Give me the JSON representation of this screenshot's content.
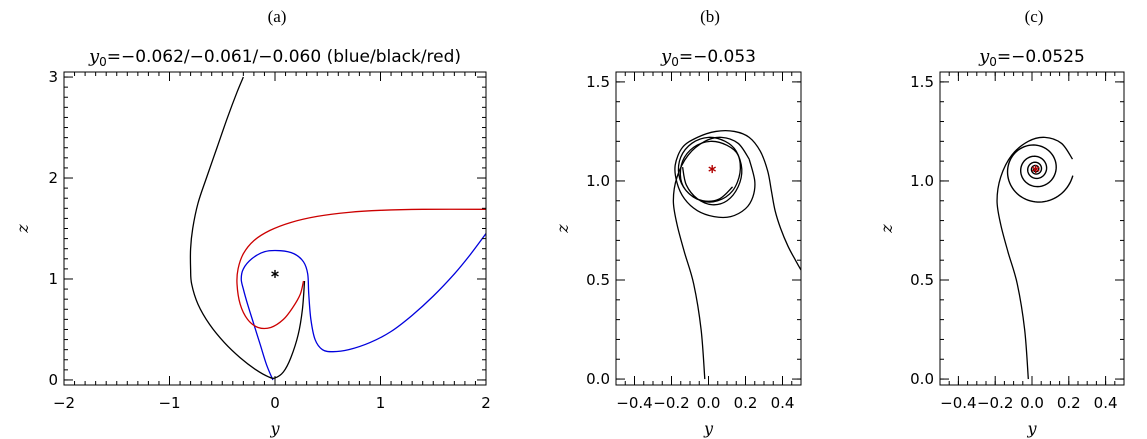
{
  "chart_data": [
    {
      "panel": "(a)",
      "type": "line",
      "title": {
        "symbol": "y",
        "subscript": "0",
        "text": "=−0.062/−0.061/−0.060 (blue/black/red)"
      },
      "xlabel": "y",
      "ylabel": "z",
      "xlim": [
        -2,
        2
      ],
      "ylim": [
        -0.05,
        3.05
      ],
      "xticks": [
        -2,
        -1,
        0,
        1,
        2
      ],
      "xtick_labels": [
        "−2",
        "−1",
        "0",
        "1",
        "2"
      ],
      "yticks": [
        0,
        1,
        2,
        3
      ],
      "ytick_labels": [
        "0",
        "1",
        "2",
        "3"
      ],
      "series": [
        {
          "color": "#0000dd",
          "points": [
            [
              -0.02,
              0.0
            ],
            [
              -0.08,
              0.15
            ],
            [
              -0.14,
              0.35
            ],
            [
              -0.2,
              0.55
            ],
            [
              -0.26,
              0.75
            ],
            [
              -0.3,
              0.9
            ],
            [
              -0.32,
              1.0
            ],
            [
              -0.3,
              1.1
            ],
            [
              -0.22,
              1.2
            ],
            [
              -0.1,
              1.27
            ],
            [
              0.05,
              1.28
            ],
            [
              0.18,
              1.25
            ],
            [
              0.27,
              1.17
            ],
            [
              0.31,
              1.05
            ],
            [
              0.32,
              0.85
            ],
            [
              0.34,
              0.6
            ],
            [
              0.38,
              0.4
            ],
            [
              0.45,
              0.3
            ],
            [
              0.55,
              0.28
            ],
            [
              0.7,
              0.3
            ],
            [
              0.9,
              0.37
            ],
            [
              1.1,
              0.48
            ],
            [
              1.3,
              0.64
            ],
            [
              1.5,
              0.83
            ],
            [
              1.7,
              1.05
            ],
            [
              1.85,
              1.24
            ],
            [
              2.0,
              1.45
            ]
          ]
        },
        {
          "color": "#000000",
          "points": [
            [
              0.28,
              0.98
            ],
            [
              0.26,
              0.7
            ],
            [
              0.22,
              0.45
            ],
            [
              0.15,
              0.22
            ],
            [
              0.08,
              0.08
            ],
            [
              0.0,
              0.02
            ],
            [
              -0.06,
              0.03
            ],
            [
              -0.18,
              0.1
            ],
            [
              -0.33,
              0.22
            ],
            [
              -0.48,
              0.37
            ],
            [
              -0.62,
              0.55
            ],
            [
              -0.73,
              0.75
            ],
            [
              -0.79,
              0.95
            ],
            [
              -0.8,
              1.1
            ],
            [
              -0.8,
              1.3
            ],
            [
              -0.78,
              1.5
            ],
            [
              -0.73,
              1.75
            ],
            [
              -0.65,
              2.0
            ],
            [
              -0.55,
              2.3
            ],
            [
              -0.45,
              2.6
            ],
            [
              -0.36,
              2.85
            ],
            [
              -0.3,
              3.0
            ]
          ]
        },
        {
          "color": "#cc0000",
          "points": [
            [
              0.27,
              0.98
            ],
            [
              0.24,
              0.85
            ],
            [
              0.17,
              0.72
            ],
            [
              0.08,
              0.6
            ],
            [
              -0.04,
              0.52
            ],
            [
              -0.16,
              0.52
            ],
            [
              -0.26,
              0.6
            ],
            [
              -0.33,
              0.75
            ],
            [
              -0.36,
              0.95
            ],
            [
              -0.35,
              1.1
            ],
            [
              -0.3,
              1.25
            ],
            [
              -0.2,
              1.38
            ],
            [
              -0.05,
              1.48
            ],
            [
              0.15,
              1.56
            ],
            [
              0.4,
              1.62
            ],
            [
              0.7,
              1.66
            ],
            [
              1.0,
              1.68
            ],
            [
              1.4,
              1.69
            ],
            [
              2.0,
              1.69
            ]
          ]
        }
      ],
      "markers": [
        {
          "x": 0.0,
          "y": 1.05,
          "color": "#000000",
          "symbol": "asterisk"
        }
      ]
    },
    {
      "panel": "(b)",
      "type": "line",
      "title": {
        "symbol": "y",
        "subscript": "0",
        "text": "=−0.053"
      },
      "xlabel": "y",
      "ylabel": "z",
      "xlim": [
        -0.5,
        0.5
      ],
      "ylim": [
        -0.03,
        1.55
      ],
      "xticks": [
        -0.4,
        -0.2,
        0.0,
        0.2,
        0.4
      ],
      "xtick_labels": [
        "−0.4",
        "−0.2",
        "0.0",
        "0.2",
        "0.4"
      ],
      "yticks": [
        0.0,
        0.5,
        1.0,
        1.5
      ],
      "ytick_labels": [
        "0.0",
        "0.5",
        "1.0",
        "1.5"
      ],
      "series": [
        {
          "color": "#000000",
          "points": [
            [
              -0.02,
              0.0
            ],
            [
              -0.04,
              0.25
            ],
            [
              -0.08,
              0.48
            ],
            [
              -0.13,
              0.64
            ],
            [
              -0.17,
              0.78
            ],
            [
              -0.19,
              0.9
            ],
            [
              -0.17,
              1.02
            ],
            [
              -0.11,
              1.13
            ],
            [
              -0.02,
              1.2
            ],
            [
              0.07,
              1.22
            ],
            [
              0.16,
              1.19
            ],
            [
              0.22,
              1.11
            ]
          ]
        },
        {
          "color": "#000000",
          "points": [
            [
              -0.14,
              1.07
            ],
            [
              -0.12,
              0.98
            ],
            [
              -0.06,
              0.91
            ],
            [
              0.02,
              0.88
            ],
            [
              0.1,
              0.9
            ],
            [
              0.16,
              0.97
            ],
            [
              0.18,
              1.06
            ],
            [
              0.15,
              1.15
            ],
            [
              0.09,
              1.2
            ],
            [
              0.0,
              1.22
            ],
            [
              -0.09,
              1.19
            ],
            [
              -0.15,
              1.12
            ],
            [
              -0.16,
              1.03
            ],
            [
              -0.12,
              0.95
            ],
            [
              -0.04,
              0.9
            ],
            [
              0.05,
              0.9
            ],
            [
              0.13,
              0.95
            ],
            [
              0.17,
              1.04
            ],
            [
              0.16,
              1.13
            ],
            [
              0.1,
              1.18
            ],
            [
              0.01,
              1.2
            ],
            [
              -0.08,
              1.17
            ],
            [
              -0.14,
              1.1
            ],
            [
              -0.15,
              1.01
            ],
            [
              -0.11,
              0.94
            ],
            [
              -0.03,
              0.9
            ],
            [
              0.06,
              0.91
            ],
            [
              0.13,
              0.97
            ]
          ]
        },
        {
          "color": "#000000",
          "points": [
            [
              0.22,
              1.11
            ],
            [
              0.25,
              1.0
            ],
            [
              0.24,
              0.92
            ],
            [
              0.2,
              0.86
            ],
            [
              0.12,
              0.82
            ],
            [
              0.03,
              0.82
            ],
            [
              -0.06,
              0.85
            ],
            [
              -0.13,
              0.91
            ],
            [
              -0.17,
              0.99
            ],
            [
              -0.18,
              1.08
            ],
            [
              -0.14,
              1.17
            ],
            [
              -0.06,
              1.22
            ],
            [
              0.04,
              1.25
            ],
            [
              0.14,
              1.25
            ],
            [
              0.22,
              1.22
            ],
            [
              0.28,
              1.15
            ],
            [
              0.32,
              1.05
            ],
            [
              0.34,
              0.95
            ],
            [
              0.36,
              0.85
            ],
            [
              0.39,
              0.76
            ],
            [
              0.43,
              0.67
            ],
            [
              0.47,
              0.6
            ],
            [
              0.5,
              0.55
            ]
          ]
        }
      ],
      "markers": [
        {
          "x": 0.02,
          "y": 1.06,
          "color": "#b00000",
          "symbol": "asterisk"
        }
      ]
    },
    {
      "panel": "(c)",
      "type": "line",
      "title": {
        "symbol": "y",
        "subscript": "0",
        "text": "=−0.0525"
      },
      "xlabel": "y",
      "ylabel": "z",
      "xlim": [
        -0.5,
        0.5
      ],
      "ylim": [
        -0.03,
        1.55
      ],
      "xticks": [
        -0.4,
        -0.2,
        0.0,
        0.2,
        0.4
      ],
      "xtick_labels": [
        "−0.4",
        "−0.2",
        "0.0",
        "0.2",
        "0.4"
      ],
      "yticks": [
        0.0,
        0.5,
        1.0,
        1.5
      ],
      "ytick_labels": [
        "0.0",
        "0.5",
        "1.0",
        "1.5"
      ],
      "series": [
        {
          "color": "#000000",
          "points": [
            [
              -0.02,
              0.0
            ],
            [
              -0.04,
              0.25
            ],
            [
              -0.08,
              0.48
            ],
            [
              -0.13,
              0.64
            ],
            [
              -0.17,
              0.78
            ],
            [
              -0.19,
              0.9
            ],
            [
              -0.17,
              1.02
            ],
            [
              -0.11,
              1.13
            ],
            [
              -0.02,
              1.2
            ],
            [
              0.07,
              1.22
            ],
            [
              0.16,
              1.19
            ],
            [
              0.22,
              1.11
            ]
          ]
        }
      ],
      "spiral": {
        "cx": 0.02,
        "cy": 1.06,
        "r_start": 0.205,
        "r_end": 0.012,
        "turns": 4.5,
        "start_angle_deg": -10
      },
      "markers": [
        {
          "x": 0.02,
          "y": 1.06,
          "color": "#b00000",
          "symbol": "asterisk"
        }
      ]
    }
  ]
}
